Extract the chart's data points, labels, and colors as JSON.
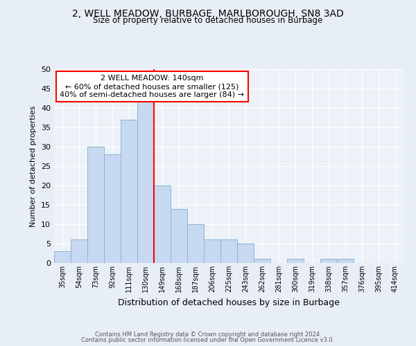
{
  "title1": "2, WELL MEADOW, BURBAGE, MARLBOROUGH, SN8 3AD",
  "title2": "Size of property relative to detached houses in Burbage",
  "xlabel": "Distribution of detached houses by size in Burbage",
  "ylabel": "Number of detached properties",
  "categories": [
    "35sqm",
    "54sqm",
    "73sqm",
    "92sqm",
    "111sqm",
    "130sqm",
    "149sqm",
    "168sqm",
    "187sqm",
    "206sqm",
    "225sqm",
    "243sqm",
    "262sqm",
    "281sqm",
    "300sqm",
    "319sqm",
    "338sqm",
    "357sqm",
    "376sqm",
    "395sqm",
    "414sqm"
  ],
  "values": [
    3,
    6,
    30,
    28,
    37,
    42,
    20,
    14,
    10,
    6,
    6,
    5,
    1,
    0,
    1,
    0,
    1,
    1,
    0,
    0,
    0
  ],
  "bar_color": "#c6d9f0",
  "bar_edge_color": "#8ab4d8",
  "redline_after_index": 5,
  "annotation_line1": "2 WELL MEADOW: 140sqm",
  "annotation_line2": "← 60% of detached houses are smaller (125)",
  "annotation_line3": "40% of semi-detached houses are larger (84) →",
  "ylim": [
    0,
    50
  ],
  "yticks": [
    0,
    5,
    10,
    15,
    20,
    25,
    30,
    35,
    40,
    45,
    50
  ],
  "bg_color": "#e8eef5",
  "plot_bg_color": "#edf2f8",
  "grid_color": "#ffffff",
  "footer_line1": "Contains HM Land Registry data © Crown copyright and database right 2024.",
  "footer_line2": "Contains public sector information licensed under the Open Government Licence v3.0."
}
